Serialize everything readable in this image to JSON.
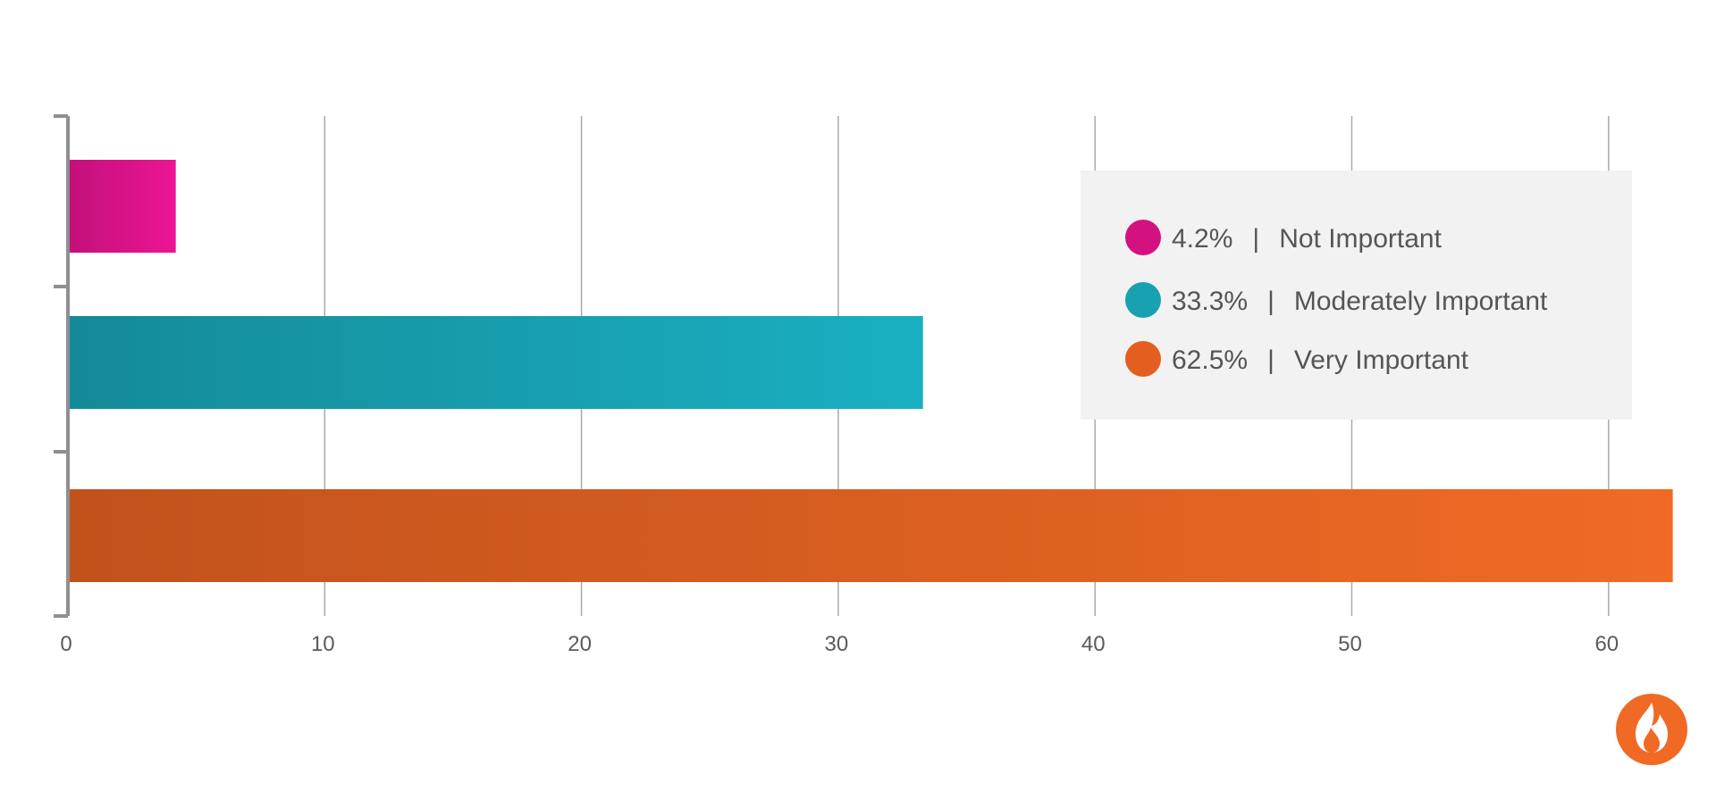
{
  "chart_data": {
    "type": "bar",
    "orientation": "horizontal",
    "title": "",
    "xlabel": "",
    "ylabel": "",
    "xlim": [
      0,
      62.5
    ],
    "x_ticks": [
      0,
      10,
      20,
      30,
      40,
      50,
      60
    ],
    "grid": true,
    "categories": [
      "Not Important",
      "Moderately Important",
      "Very Important"
    ],
    "values": [
      4.2,
      33.3,
      62.5
    ],
    "colors": {
      "Not Important": [
        "#c2107a",
        "#ec1594"
      ],
      "Moderately Important": [
        "#148a98",
        "#1ab0c2"
      ],
      "Very Important": [
        "#c1521c",
        "#f06a25"
      ]
    },
    "legend": {
      "placement": "top-right",
      "entries": [
        {
          "percent": "4.2%",
          "separator": "|",
          "label": "Not Important",
          "color": "#d4127f"
        },
        {
          "percent": "33.3%",
          "separator": "|",
          "label": "Moderately Important",
          "color": "#18a1b1"
        },
        {
          "percent": "62.5%",
          "separator": "|",
          "label": "Very Important",
          "color": "#e35f20"
        }
      ]
    }
  },
  "logo": {
    "icon": "flame-icon",
    "color": "#f06a25"
  }
}
